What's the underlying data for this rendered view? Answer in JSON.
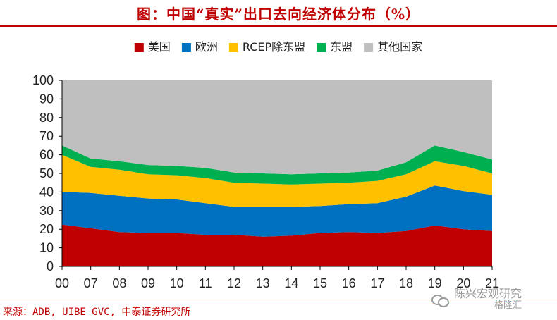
{
  "title": "图：中国“真实”出口去向经济体分布（%）",
  "source": "来源：ADB, UIBE GVC, 中泰证券研究所",
  "watermark": {
    "name": "陈兴宏观研究",
    "sub": "格隆汇",
    "icon": "wechat-icon"
  },
  "chart_data": {
    "type": "area",
    "stacked": true,
    "categories": [
      "00",
      "07",
      "08",
      "09",
      "10",
      "11",
      "12",
      "13",
      "14",
      "15",
      "16",
      "17",
      "18",
      "19",
      "20",
      "21"
    ],
    "ylim": [
      0,
      100
    ],
    "yticks": [
      0,
      10,
      20,
      30,
      40,
      50,
      60,
      70,
      80,
      90,
      100
    ],
    "legend_position": "top",
    "grid": false,
    "series": [
      {
        "name": "美国",
        "color": "#c00000",
        "values": [
          22.5,
          20.5,
          18.5,
          18,
          18,
          17,
          17,
          16,
          16.5,
          18,
          18.5,
          18,
          19,
          22,
          20,
          19
        ]
      },
      {
        "name": "欧洲",
        "color": "#0070c0",
        "values": [
          17.5,
          19,
          19.5,
          18.5,
          18,
          17,
          15,
          16,
          15.5,
          14.5,
          15,
          16,
          18.5,
          21.5,
          20.5,
          19.5
        ]
      },
      {
        "name": "RCEP除东盟",
        "color": "#ffc000",
        "values": [
          20,
          14,
          14,
          13,
          13,
          13.5,
          13,
          12.5,
          12,
          12,
          11.5,
          12,
          12,
          13,
          13.5,
          11.5
        ]
      },
      {
        "name": "东盟",
        "color": "#00b050",
        "values": [
          5,
          4.5,
          4.5,
          5,
          5,
          5.5,
          5.5,
          5.5,
          5.5,
          5.5,
          5.5,
          5.5,
          6.5,
          8.5,
          7.5,
          7.5
        ]
      },
      {
        "name": "其他国家",
        "color": "#bfbfbf",
        "values": [
          35,
          42,
          43.5,
          45.5,
          46,
          47,
          49.5,
          50,
          50.5,
          50,
          49.5,
          48.5,
          44,
          35,
          38.5,
          42.5
        ]
      }
    ]
  }
}
